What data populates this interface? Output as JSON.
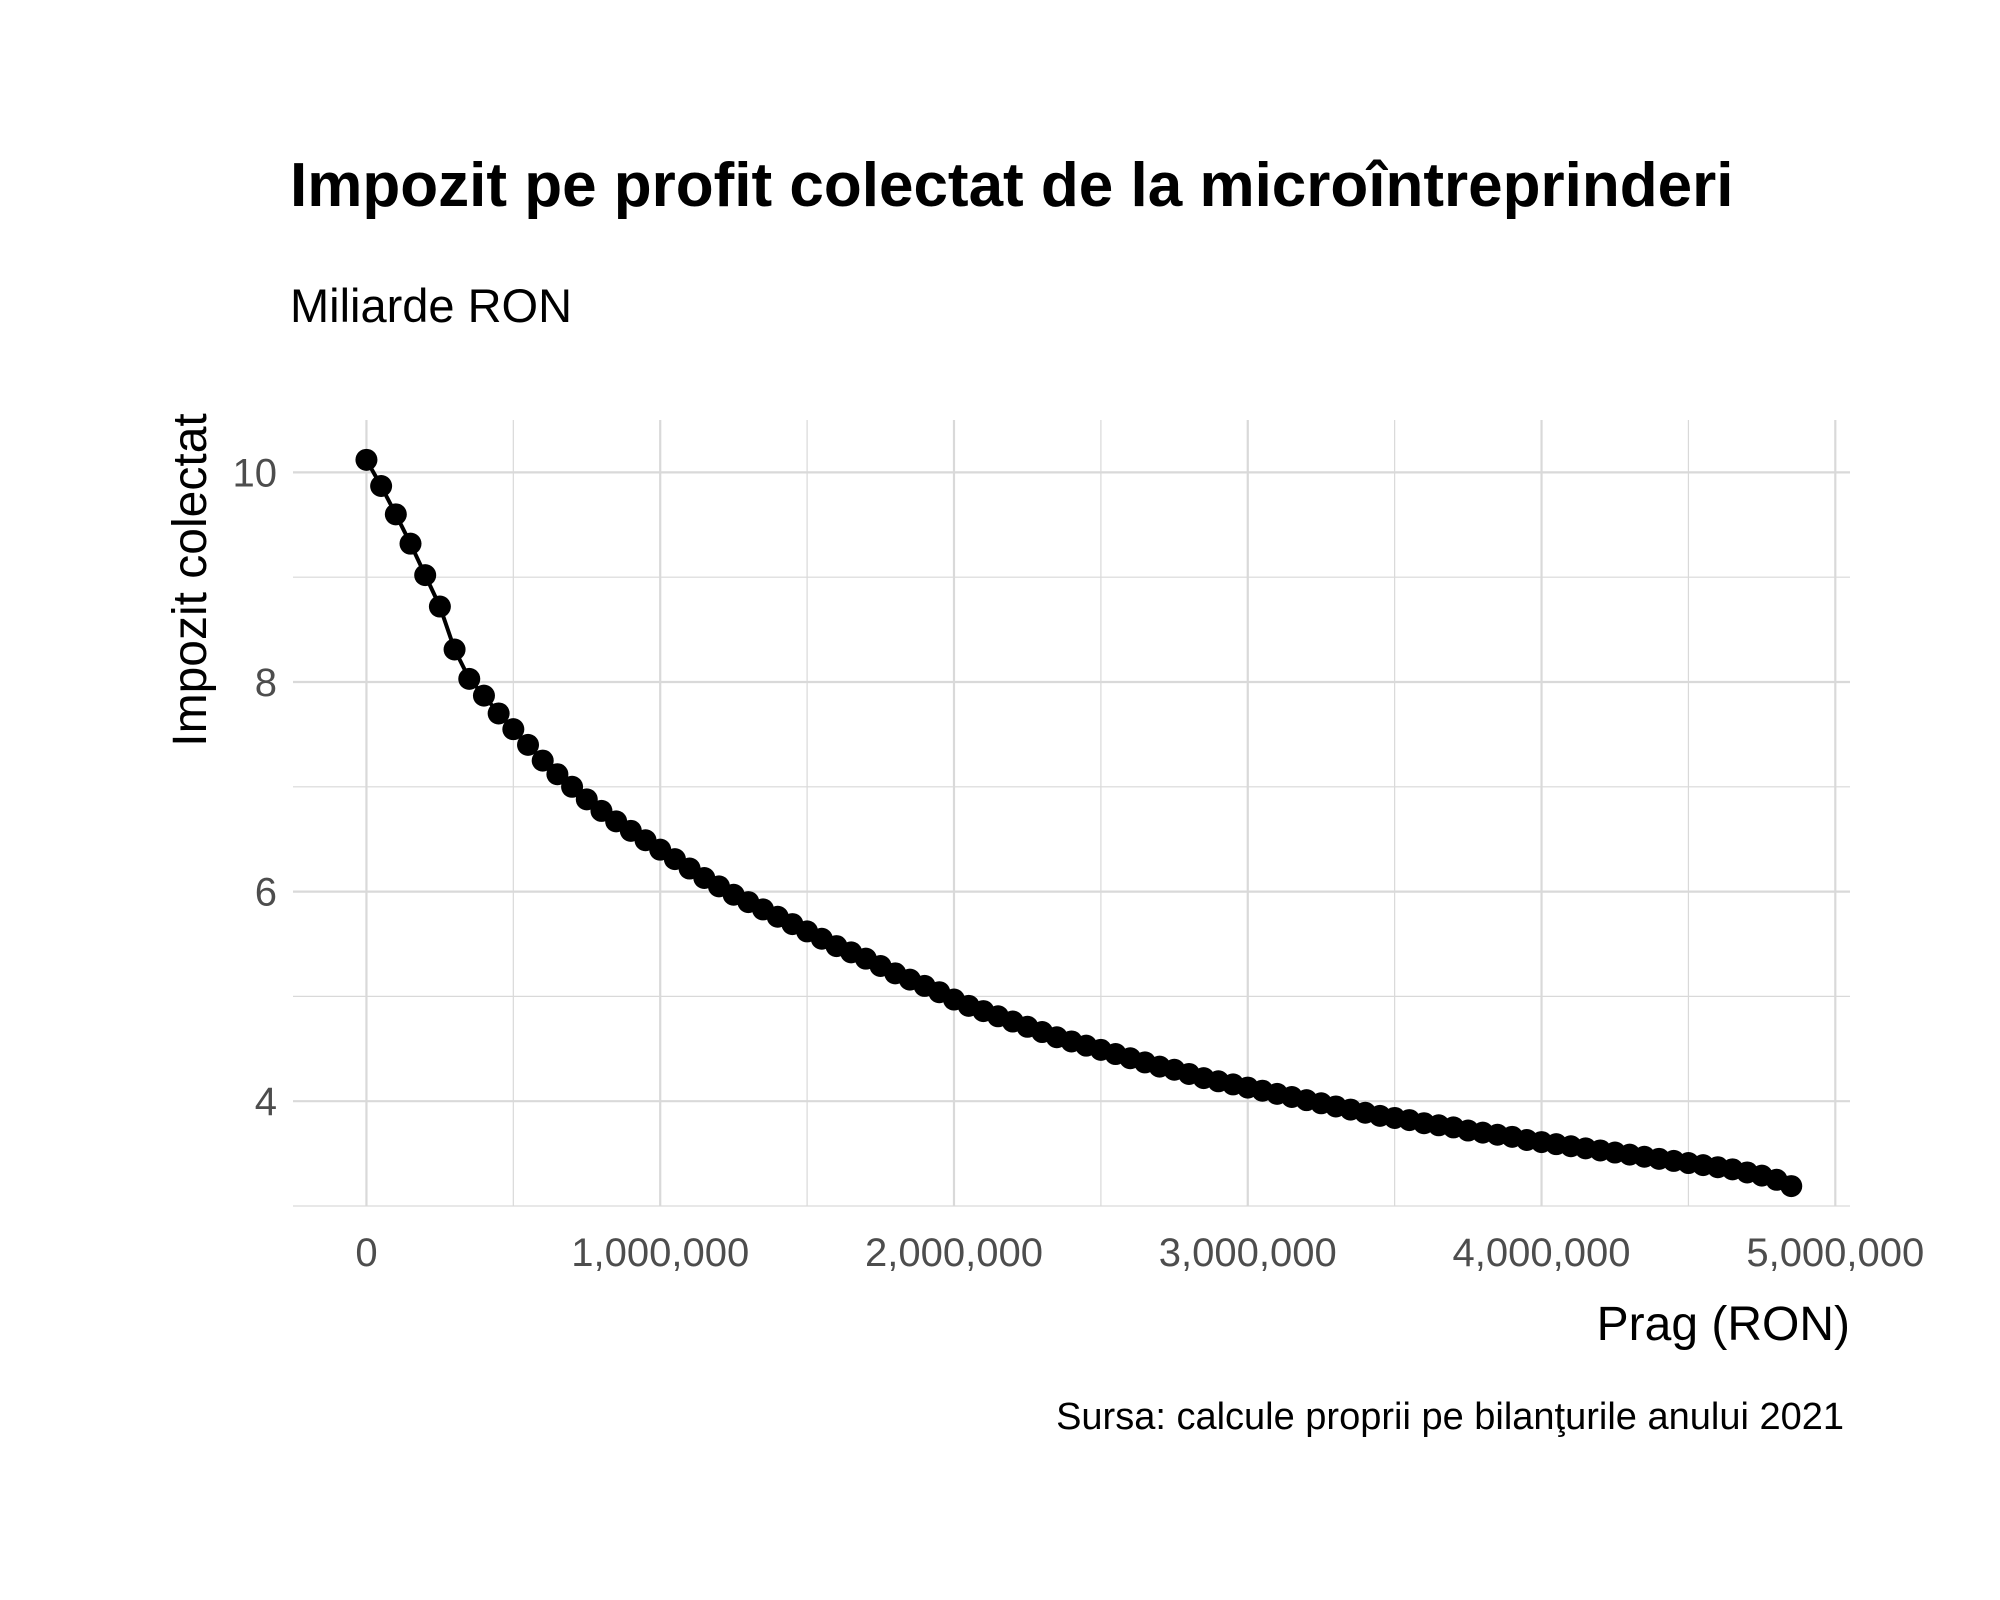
{
  "chart_data": {
    "type": "line",
    "title": "Impozit pe profit colectat de la microîntreprinderi",
    "subtitle": "Miliarde RON",
    "xlabel": "Prag (RON)",
    "ylabel": "Impozit colectat",
    "caption": "Sursa: calcule proprii pe bilanţurile anului 2021",
    "xlim": [
      -250000,
      5050000
    ],
    "ylim": [
      3.0,
      10.5
    ],
    "x_ticks": [
      0,
      1000000,
      2000000,
      3000000,
      4000000,
      5000000
    ],
    "x_tick_labels": [
      "0",
      "1,000,000",
      "2,000,000",
      "3,000,000",
      "4,000,000",
      "5,000,000"
    ],
    "y_ticks": [
      4,
      6,
      8,
      10
    ],
    "y_tick_labels": [
      "4",
      "6",
      "8",
      "10"
    ],
    "grid": true,
    "marker": "circle",
    "series": [
      {
        "color": "#000000",
        "x": [
          0,
          50000,
          100000,
          150000,
          200000,
          250000,
          300000,
          350000,
          400000,
          450000,
          500000,
          550000,
          600000,
          650000,
          700000,
          750000,
          800000,
          850000,
          900000,
          950000,
          1000000,
          1050000,
          1100000,
          1150000,
          1200000,
          1250000,
          1300000,
          1350000,
          1400000,
          1450000,
          1500000,
          1550000,
          1600000,
          1650000,
          1700000,
          1750000,
          1800000,
          1850000,
          1900000,
          1950000,
          2000000,
          2050000,
          2100000,
          2150000,
          2200000,
          2250000,
          2300000,
          2350000,
          2400000,
          2450000,
          2500000,
          2550000,
          2600000,
          2650000,
          2700000,
          2750000,
          2800000,
          2850000,
          2900000,
          2950000,
          3000000,
          3050000,
          3100000,
          3150000,
          3200000,
          3250000,
          3300000,
          3350000,
          3400000,
          3450000,
          3500000,
          3550000,
          3600000,
          3650000,
          3700000,
          3750000,
          3800000,
          3850000,
          3900000,
          3950000,
          4000000,
          4050000,
          4100000,
          4150000,
          4200000,
          4250000,
          4300000,
          4350000,
          4400000,
          4450000,
          4500000,
          4550000,
          4600000,
          4650000,
          4700000,
          4750000,
          4800000,
          4850000
        ],
        "y": [
          10.12,
          9.87,
          9.6,
          9.32,
          9.02,
          8.72,
          8.31,
          8.03,
          7.87,
          7.7,
          7.55,
          7.4,
          7.25,
          7.12,
          7.0,
          6.88,
          6.77,
          6.67,
          6.58,
          6.49,
          6.4,
          6.31,
          6.22,
          6.13,
          6.05,
          5.97,
          5.9,
          5.83,
          5.76,
          5.69,
          5.62,
          5.55,
          5.48,
          5.42,
          5.36,
          5.29,
          5.22,
          5.16,
          5.1,
          5.04,
          4.97,
          4.91,
          4.86,
          4.81,
          4.76,
          4.71,
          4.66,
          4.61,
          4.57,
          4.53,
          4.49,
          4.45,
          4.41,
          4.37,
          4.33,
          4.3,
          4.26,
          4.22,
          4.19,
          4.16,
          4.13,
          4.1,
          4.07,
          4.04,
          4.01,
          3.98,
          3.95,
          3.92,
          3.89,
          3.86,
          3.84,
          3.82,
          3.79,
          3.77,
          3.75,
          3.72,
          3.7,
          3.68,
          3.66,
          3.63,
          3.61,
          3.59,
          3.57,
          3.55,
          3.53,
          3.51,
          3.49,
          3.47,
          3.45,
          3.43,
          3.41,
          3.39,
          3.37,
          3.35,
          3.32,
          3.29,
          3.25,
          3.19
        ]
      }
    ]
  }
}
